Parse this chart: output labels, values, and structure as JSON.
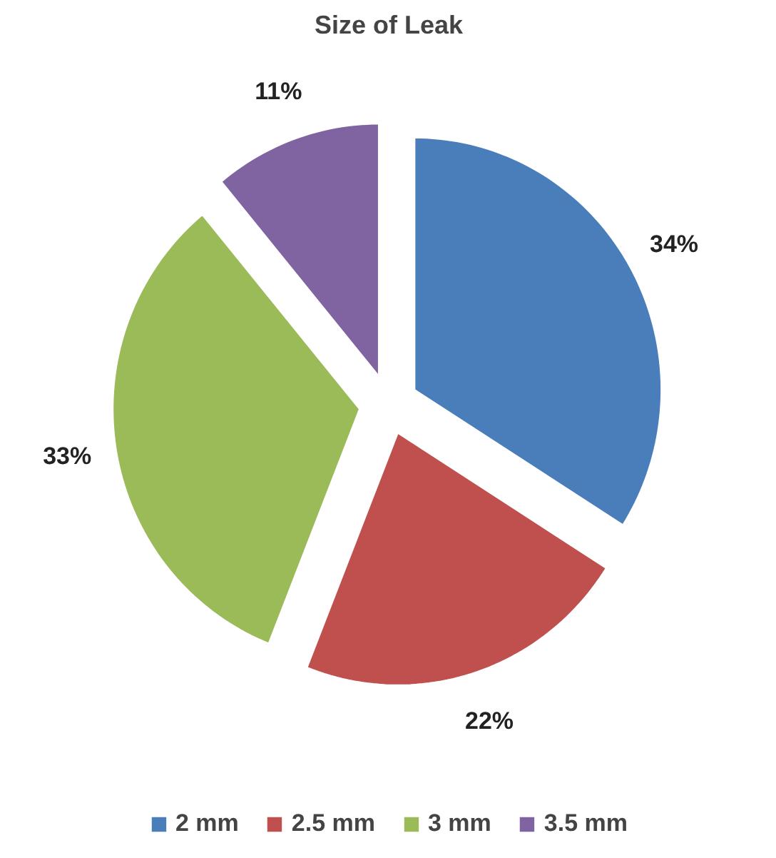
{
  "chart_data": {
    "type": "pie",
    "title": "Size of Leak",
    "categories": [
      "2 mm",
      "2.5 mm",
      "3 mm",
      "3.5 mm"
    ],
    "values": [
      34,
      22,
      33,
      11
    ],
    "colors": [
      "#4a7ebb",
      "#c0504d",
      "#9bbb59",
      "#8064a2"
    ],
    "value_labels": [
      "34%",
      "22%",
      "33%",
      "11%"
    ],
    "legend": "bottom"
  }
}
